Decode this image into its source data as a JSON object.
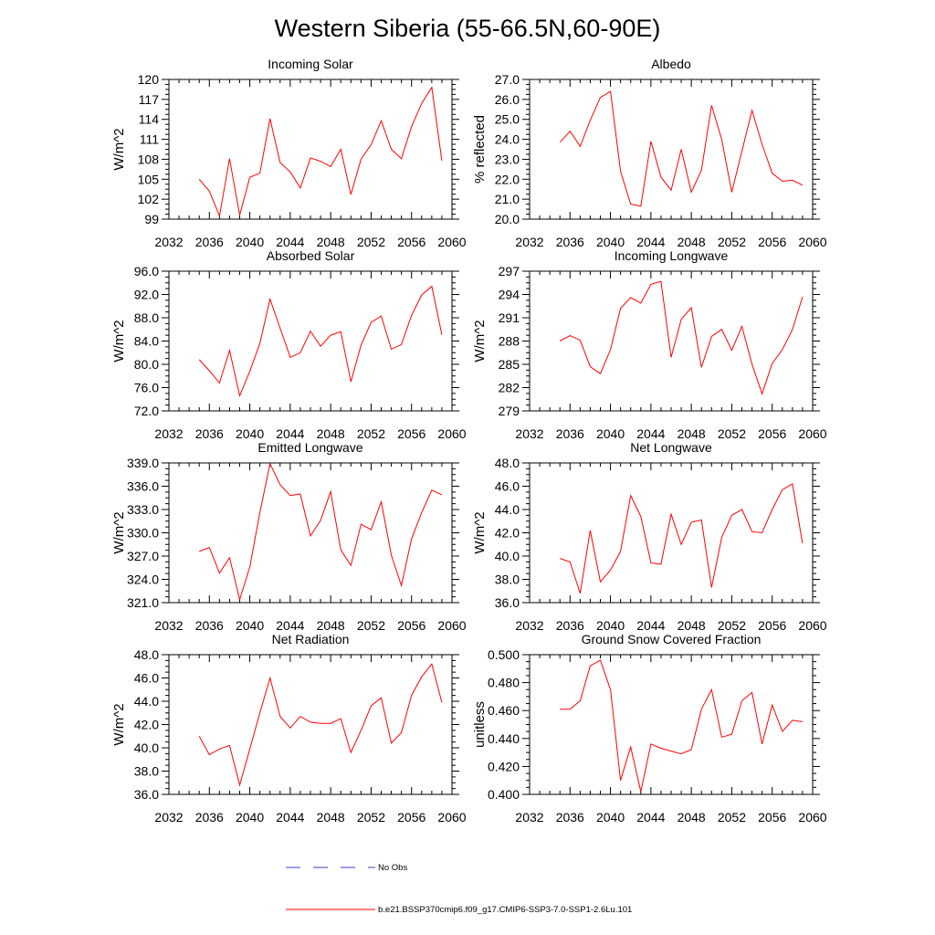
{
  "title": "Western Siberia (55-66.5N,60-90E)",
  "colors": {
    "model": "#ff0000",
    "obs": "#3b3bcc",
    "axis": "#000000"
  },
  "legend": {
    "obs_label": "No Obs",
    "model_label": "b.e21.BSSP370cmip6.f09_g17.CMIP6-SSP3-7.0-SSP1-2.6Lu.101"
  },
  "chart_data": [
    {
      "type": "line",
      "title": "Incoming Solar",
      "ylabel": "W/m^2",
      "xlim": [
        2032,
        2060
      ],
      "xticks": [
        2032,
        2036,
        2040,
        2044,
        2048,
        2052,
        2056,
        2060
      ],
      "xtick_labels": [
        "2032",
        "2036",
        "2040",
        "2044",
        "2048",
        "2052",
        "2056",
        "2060"
      ],
      "ylim": [
        99,
        120
      ],
      "yticks": [
        99,
        102,
        105,
        108,
        111,
        114,
        117,
        120
      ],
      "ytick_labels": [
        "99",
        "102",
        "105",
        "108",
        "111",
        "114",
        "117",
        "120"
      ],
      "x": [
        2035,
        2036,
        2037,
        2038,
        2039,
        2040,
        2041,
        2042,
        2043,
        2044,
        2045,
        2046,
        2047,
        2048,
        2049,
        2050,
        2051,
        2052,
        2053,
        2054,
        2055,
        2056,
        2057,
        2058,
        2059
      ],
      "y": [
        105.0,
        103.2,
        99.5,
        108.1,
        99.6,
        105.3,
        105.9,
        114.1,
        107.5,
        106.1,
        103.7,
        108.2,
        107.7,
        106.9,
        109.5,
        102.7,
        108.0,
        110.2,
        113.8,
        109.5,
        108.1,
        112.9,
        116.4,
        118.8,
        107.8
      ]
    },
    {
      "type": "line",
      "title": "Albedo",
      "ylabel": "% reflected",
      "xlim": [
        2032,
        2060
      ],
      "xticks": [
        2032,
        2036,
        2040,
        2044,
        2048,
        2052,
        2056,
        2060
      ],
      "xtick_labels": [
        "2032",
        "2036",
        "2040",
        "2044",
        "2048",
        "2052",
        "2056",
        "2060"
      ],
      "ylim": [
        20,
        27
      ],
      "yticks": [
        20,
        21,
        22,
        23,
        24,
        25,
        26,
        27
      ],
      "ytick_labels": [
        "20.0",
        "21.0",
        "22.0",
        "23.0",
        "24.0",
        "25.0",
        "26.0",
        "27.0"
      ],
      "x": [
        2035,
        2036,
        2037,
        2038,
        2039,
        2040,
        2041,
        2042,
        2043,
        2044,
        2045,
        2046,
        2047,
        2048,
        2049,
        2050,
        2051,
        2052,
        2053,
        2054,
        2055,
        2056,
        2057,
        2058,
        2059
      ],
      "y": [
        23.85,
        24.4,
        23.65,
        24.95,
        26.1,
        26.4,
        22.4,
        20.75,
        20.65,
        23.9,
        22.1,
        21.45,
        23.5,
        21.35,
        22.45,
        25.7,
        24.0,
        21.35,
        23.4,
        25.45,
        23.75,
        22.3,
        21.9,
        21.95,
        21.7
      ]
    },
    {
      "type": "line",
      "title": "Absorbed Solar",
      "ylabel": "W/m^2",
      "xlim": [
        2032,
        2060
      ],
      "xticks": [
        2032,
        2036,
        2040,
        2044,
        2048,
        2052,
        2056,
        2060
      ],
      "xtick_labels": [
        "2032",
        "2036",
        "2040",
        "2044",
        "2048",
        "2052",
        "2056",
        "2060"
      ],
      "ylim": [
        72,
        96
      ],
      "yticks": [
        72,
        76,
        80,
        84,
        88,
        92,
        96
      ],
      "ytick_labels": [
        "72.0",
        "76.0",
        "80.0",
        "84.0",
        "88.0",
        "92.0",
        "96.0"
      ],
      "x": [
        2035,
        2036,
        2037,
        2038,
        2039,
        2040,
        2041,
        2042,
        2043,
        2044,
        2045,
        2046,
        2047,
        2048,
        2049,
        2050,
        2051,
        2052,
        2053,
        2054,
        2055,
        2056,
        2057,
        2058,
        2059
      ],
      "y": [
        80.8,
        78.9,
        76.8,
        82.4,
        74.6,
        78.8,
        83.6,
        91.2,
        86.2,
        81.2,
        82.0,
        85.7,
        83.1,
        85.0,
        85.6,
        77.0,
        83.3,
        87.2,
        88.3,
        82.6,
        83.4,
        88.4,
        91.9,
        93.4,
        85.1
      ]
    },
    {
      "type": "line",
      "title": "Incoming Longwave",
      "ylabel": "W/m^2",
      "xlim": [
        2032,
        2060
      ],
      "xticks": [
        2032,
        2036,
        2040,
        2044,
        2048,
        2052,
        2056,
        2060
      ],
      "xtick_labels": [
        "2032",
        "2036",
        "2040",
        "2044",
        "2048",
        "2052",
        "2056",
        "2060"
      ],
      "ylim": [
        279,
        297
      ],
      "yticks": [
        279,
        282,
        285,
        288,
        291,
        294,
        297
      ],
      "ytick_labels": [
        "279",
        "282",
        "285",
        "288",
        "291",
        "294",
        "297"
      ],
      "x": [
        2035,
        2036,
        2037,
        2038,
        2039,
        2040,
        2041,
        2042,
        2043,
        2044,
        2045,
        2046,
        2047,
        2048,
        2049,
        2050,
        2051,
        2052,
        2053,
        2054,
        2055,
        2056,
        2057,
        2058,
        2059
      ],
      "y": [
        288.0,
        288.7,
        288.1,
        284.7,
        283.8,
        286.9,
        292.2,
        293.6,
        292.9,
        295.3,
        295.7,
        285.9,
        290.8,
        292.3,
        284.6,
        288.6,
        289.5,
        286.8,
        289.9,
        285.0,
        281.2,
        285.1,
        286.9,
        289.5,
        293.7
      ]
    },
    {
      "type": "line",
      "title": "Emitted Longwave",
      "ylabel": "W/m^2",
      "xlim": [
        2032,
        2060
      ],
      "xticks": [
        2032,
        2036,
        2040,
        2044,
        2048,
        2052,
        2056,
        2060
      ],
      "xtick_labels": [
        "2032",
        "2036",
        "2040",
        "2044",
        "2048",
        "2052",
        "2056",
        "2060"
      ],
      "ylim": [
        321,
        339
      ],
      "yticks": [
        321,
        324,
        327,
        330,
        333,
        336,
        339
      ],
      "ytick_labels": [
        "321.0",
        "324.0",
        "327.0",
        "330.0",
        "333.0",
        "336.0",
        "339.0"
      ],
      "x": [
        2035,
        2036,
        2037,
        2038,
        2039,
        2040,
        2041,
        2042,
        2043,
        2044,
        2045,
        2046,
        2047,
        2048,
        2049,
        2050,
        2051,
        2052,
        2053,
        2054,
        2055,
        2056,
        2057,
        2058,
        2059
      ],
      "y": [
        327.6,
        328.1,
        324.8,
        326.8,
        321.4,
        325.6,
        332.6,
        338.9,
        336.2,
        334.8,
        335.0,
        329.6,
        331.6,
        335.3,
        327.8,
        325.8,
        331.1,
        330.4,
        334.0,
        327.1,
        323.2,
        329.2,
        332.6,
        335.5,
        334.9
      ]
    },
    {
      "type": "line",
      "title": "Net Longwave",
      "ylabel": "W/m^2",
      "xlim": [
        2032,
        2060
      ],
      "xticks": [
        2032,
        2036,
        2040,
        2044,
        2048,
        2052,
        2056,
        2060
      ],
      "xtick_labels": [
        "2032",
        "2036",
        "2040",
        "2044",
        "2048",
        "2052",
        "2056",
        "2060"
      ],
      "ylim": [
        36,
        48
      ],
      "yticks": [
        36,
        38,
        40,
        42,
        44,
        46,
        48
      ],
      "ytick_labels": [
        "36.0",
        "38.0",
        "40.0",
        "42.0",
        "44.0",
        "46.0",
        "48.0"
      ],
      "x": [
        2035,
        2036,
        2037,
        2038,
        2039,
        2040,
        2041,
        2042,
        2043,
        2044,
        2045,
        2046,
        2047,
        2048,
        2049,
        2050,
        2051,
        2052,
        2053,
        2054,
        2055,
        2056,
        2057,
        2058,
        2059
      ],
      "y": [
        39.8,
        39.5,
        36.8,
        42.2,
        37.8,
        38.8,
        40.4,
        45.2,
        43.4,
        39.4,
        39.3,
        43.6,
        41.0,
        42.9,
        43.1,
        37.3,
        41.6,
        43.5,
        44.0,
        42.1,
        42.0,
        44.0,
        45.7,
        46.2,
        41.1
      ]
    },
    {
      "type": "line",
      "title": "Net Radiation",
      "ylabel": "W/m^2",
      "xlim": [
        2032,
        2060
      ],
      "xticks": [
        2032,
        2036,
        2040,
        2044,
        2048,
        2052,
        2056,
        2060
      ],
      "xtick_labels": [
        "2032",
        "2036",
        "2040",
        "2044",
        "2048",
        "2052",
        "2056",
        "2060"
      ],
      "ylim": [
        36,
        48
      ],
      "yticks": [
        36,
        38,
        40,
        42,
        44,
        46,
        48
      ],
      "ytick_labels": [
        "36.0",
        "38.0",
        "40.0",
        "42.0",
        "44.0",
        "46.0",
        "48.0"
      ],
      "x": [
        2035,
        2036,
        2037,
        2038,
        2039,
        2040,
        2041,
        2042,
        2043,
        2044,
        2045,
        2046,
        2047,
        2048,
        2049,
        2050,
        2051,
        2052,
        2053,
        2054,
        2055,
        2056,
        2057,
        2058,
        2059
      ],
      "y": [
        41.0,
        39.4,
        39.9,
        40.2,
        36.8,
        39.9,
        43.0,
        46.0,
        42.7,
        41.7,
        42.7,
        42.2,
        42.1,
        42.1,
        42.5,
        39.6,
        41.5,
        43.6,
        44.3,
        40.4,
        41.3,
        44.5,
        46.1,
        47.2,
        43.9
      ]
    },
    {
      "type": "line",
      "title": "Ground Snow Covered Fraction",
      "ylabel": "unitless",
      "xlim": [
        2032,
        2060
      ],
      "xticks": [
        2032,
        2036,
        2040,
        2044,
        2048,
        2052,
        2056,
        2060
      ],
      "xtick_labels": [
        "2032",
        "2036",
        "2040",
        "2044",
        "2048",
        "2052",
        "2056",
        "2060"
      ],
      "ylim": [
        0.4,
        0.5
      ],
      "yticks": [
        0.4,
        0.42,
        0.44,
        0.46,
        0.48,
        0.5
      ],
      "ytick_labels": [
        "0.400",
        "0.420",
        "0.440",
        "0.460",
        "0.480",
        "0.500"
      ],
      "x": [
        2035,
        2036,
        2037,
        2038,
        2039,
        2040,
        2041,
        2042,
        2043,
        2044,
        2045,
        2046,
        2047,
        2048,
        2049,
        2050,
        2051,
        2052,
        2053,
        2054,
        2055,
        2056,
        2057,
        2058,
        2059
      ],
      "y": [
        0.461,
        0.461,
        0.467,
        0.492,
        0.496,
        0.475,
        0.41,
        0.434,
        0.402,
        0.436,
        0.433,
        0.431,
        0.429,
        0.432,
        0.461,
        0.475,
        0.441,
        0.443,
        0.467,
        0.473,
        0.436,
        0.464,
        0.445,
        0.453,
        0.452
      ]
    }
  ]
}
